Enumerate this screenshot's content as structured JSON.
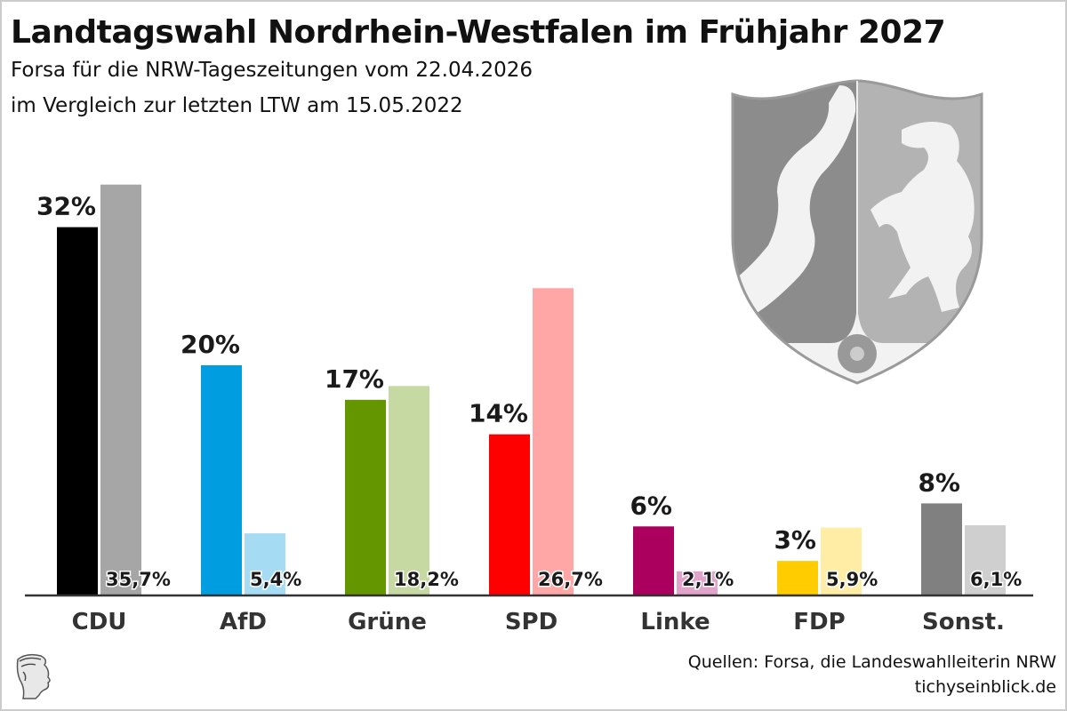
{
  "header": {
    "title": "Landtagswahl Nordrhein-Westfalen im Frühjahr 2027",
    "subtitle_line1": "Forsa für die NRW-Tageszeitungen vom 22.04.2026",
    "subtitle_line2": "im Vergleich zur letzten LTW am 15.05.2022"
  },
  "footer": {
    "sources": "Quellen: Forsa, die Landeswahlleiterin NRW",
    "site": "tichyseinblick.de"
  },
  "crest": {
    "name": "nrw-coat-of-arms-icon"
  },
  "logo": {
    "name": "hermes-head-logo-icon"
  },
  "chart_data": {
    "type": "bar",
    "title": "Landtagswahl Nordrhein-Westfalen im Frühjahr 2027",
    "xlabel": "",
    "ylabel": "",
    "ylim": [
      0,
      36
    ],
    "grid": false,
    "categories": [
      "CDU",
      "AfD",
      "Grüne",
      "SPD",
      "Linke",
      "FDP",
      "Sonst."
    ],
    "series": [
      {
        "name": "Forsa 22.04.2026",
        "values": [
          32,
          20,
          17,
          14,
          6,
          3,
          8
        ],
        "labels": [
          "32%",
          "20%",
          "17%",
          "14%",
          "6%",
          "3%",
          "8%"
        ],
        "colors": [
          "#000000",
          "#009ee0",
          "#649600",
          "#ff0000",
          "#ab005e",
          "#ffcc00",
          "#808080"
        ]
      },
      {
        "name": "LTW 15.05.2022",
        "values": [
          35.7,
          5.4,
          18.2,
          26.7,
          2.1,
          5.9,
          6.1
        ],
        "labels": [
          "35,7%",
          "5,4%",
          "18,2%",
          "26,7%",
          "2,1%",
          "5,9%",
          "6,1%"
        ],
        "colors": [
          "#a6a6a6",
          "#a6dcf3",
          "#c6d9a3",
          "#ffa6a6",
          "#e0a3c9",
          "#ffeda6",
          "#cfcfcf"
        ]
      }
    ]
  }
}
